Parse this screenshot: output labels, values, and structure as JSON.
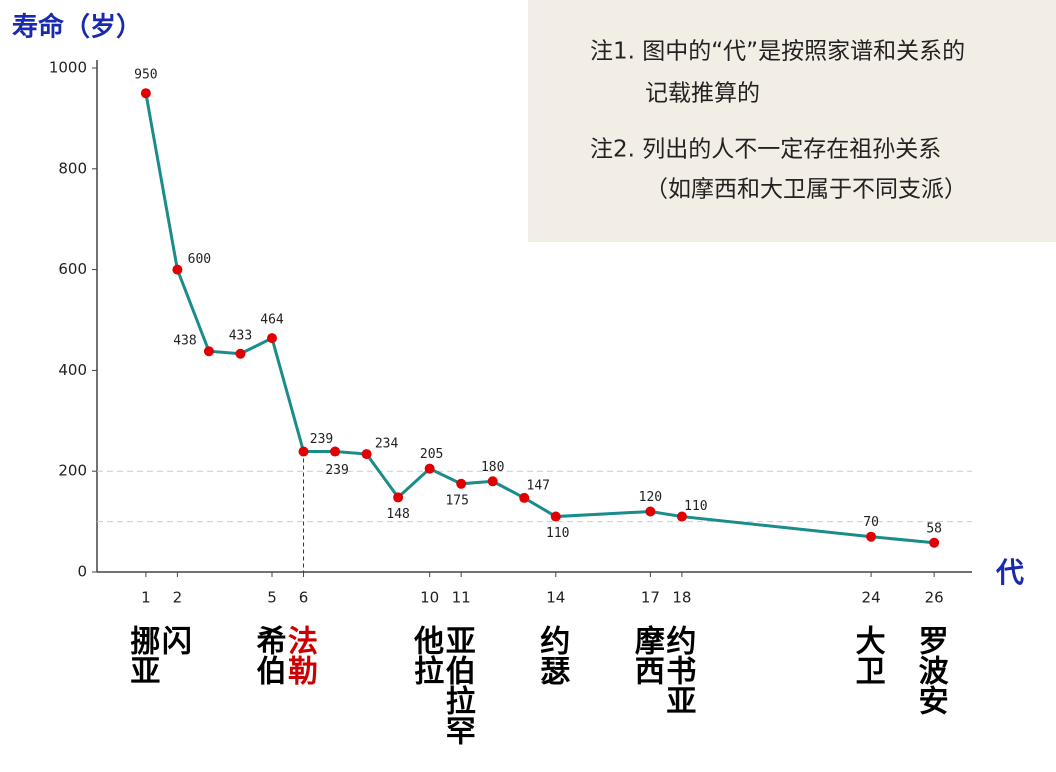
{
  "chart_data": {
    "type": "line",
    "y_label": "寿命（岁）",
    "x_label": "代",
    "x": [
      1,
      2,
      3,
      4,
      5,
      6,
      7,
      8,
      9,
      10,
      11,
      12,
      13,
      14,
      17,
      18,
      24,
      26
    ],
    "series": [
      {
        "name": "寿命",
        "color": "#1a8c8c",
        "marker_color": "#e00000",
        "values": [
          950,
          600,
          438,
          433,
          464,
          239,
          239,
          234,
          148,
          205,
          175,
          180,
          147,
          110,
          120,
          110,
          70,
          58
        ]
      }
    ],
    "xlim": [
      -0.55,
      27.2
    ],
    "ylim": [
      0,
      1000
    ],
    "xticks": [
      1,
      2,
      5,
      6,
      10,
      11,
      14,
      17,
      18,
      24,
      26
    ],
    "yticks": [
      0,
      200,
      400,
      600,
      800,
      1000
    ],
    "grid_lines": [
      100,
      200
    ],
    "names": [
      "挪亚",
      "闪",
      "希伯",
      "法勒",
      "他拉",
      "亚伯拉罕",
      "约瑟",
      "摩西",
      "约书亚",
      "大卫",
      "罗波安"
    ],
    "name_colors": [
      "#000000",
      "#000000",
      "#000000",
      "#cc0000",
      "#000000",
      "#000000",
      "#000000",
      "#000000",
      "#000000",
      "#000000",
      "#000000"
    ],
    "notes": [
      [
        "注1. 图中的“代”是按照家谱和关系的",
        "记载推算的"
      ],
      [
        "注2. 列出的人不一定存在祖孙关系",
        "（如摩西和大卫属于不同支派）"
      ]
    ]
  }
}
